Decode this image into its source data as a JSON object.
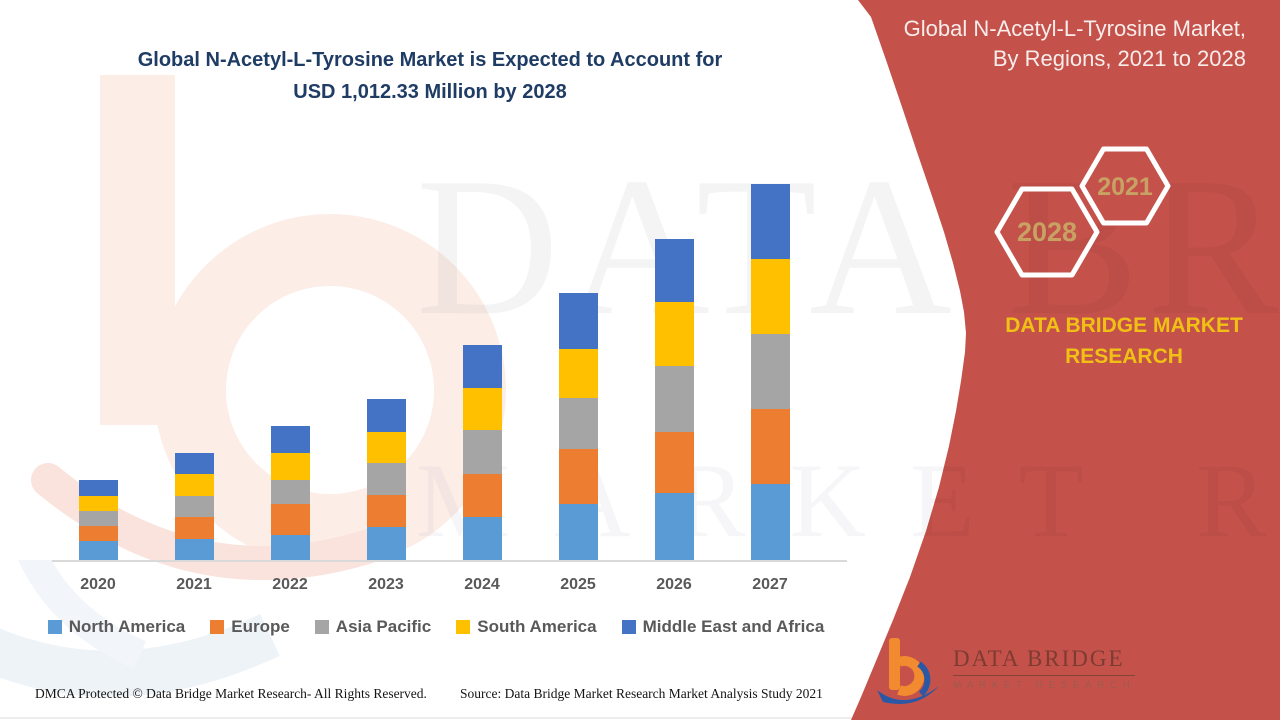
{
  "header": {
    "title_line1": "Global N-Acetyl-L-Tyrosine Market is Expected to Account for",
    "title_line2": "USD 1,012.33 Million by 2028"
  },
  "sidebar": {
    "title_line1": "Global N-Acetyl-L-Tyrosine Market,",
    "title_line2": "By Regions, 2021 to 2028",
    "hexagons": [
      {
        "label": "2028"
      },
      {
        "label": "2021"
      }
    ],
    "brand_line1": "DATA BRIDGE MARKET",
    "brand_line2": "RESEARCH",
    "logo_wordmark": "DATA BRIDGE",
    "logo_subtext": "MARKET RESEARCH",
    "background_color": "#C4524B",
    "brand_text_color": "#F0C014",
    "hexagon_label_color": "#C8A263"
  },
  "watermark": {
    "line1": "DATA BRIDGE",
    "line2": "MARKET RESEARCH"
  },
  "footer": {
    "left": "DMCA Protected © Data Bridge Market Research- All Rights Reserved.",
    "right": "Source: Data Bridge Market Research Market Analysis Study 2021"
  },
  "chart_data": {
    "type": "bar",
    "stacked": true,
    "title": "Global N-Acetyl-L-Tyrosine Market is Expected to Account for USD 1,012.33 Million by 2028",
    "categories": [
      "2020",
      "2021",
      "2022",
      "2023",
      "2024",
      "2025",
      "2026",
      "2027"
    ],
    "series": [
      {
        "name": "North America",
        "color": "#5B9BD5",
        "values": [
          19,
          21,
          25,
          33,
          43,
          56,
          67,
          76
        ]
      },
      {
        "name": "Europe",
        "color": "#ED7D31",
        "values": [
          15,
          22,
          31,
          32,
          43,
          55,
          61,
          75
        ]
      },
      {
        "name": "Asia Pacific",
        "color": "#A5A5A5",
        "values": [
          15,
          21,
          24,
          32,
          44,
          51,
          66,
          75
        ]
      },
      {
        "name": "South America",
        "color": "#FFC000",
        "values": [
          15,
          22,
          27,
          31,
          42,
          49,
          64,
          75
        ]
      },
      {
        "name": "Middle East and Africa",
        "color": "#4472C4",
        "values": [
          16,
          21,
          27,
          33,
          43,
          56,
          63,
          75
        ]
      }
    ],
    "xlabel": "",
    "ylabel": "",
    "value_axis_visible": false,
    "note": "No numeric value axis is shown in the figure; series values are estimated relative stacked-segment heights (pixels), bottom-to-top order = series order.",
    "legend_position": "bottom",
    "grid": false
  }
}
